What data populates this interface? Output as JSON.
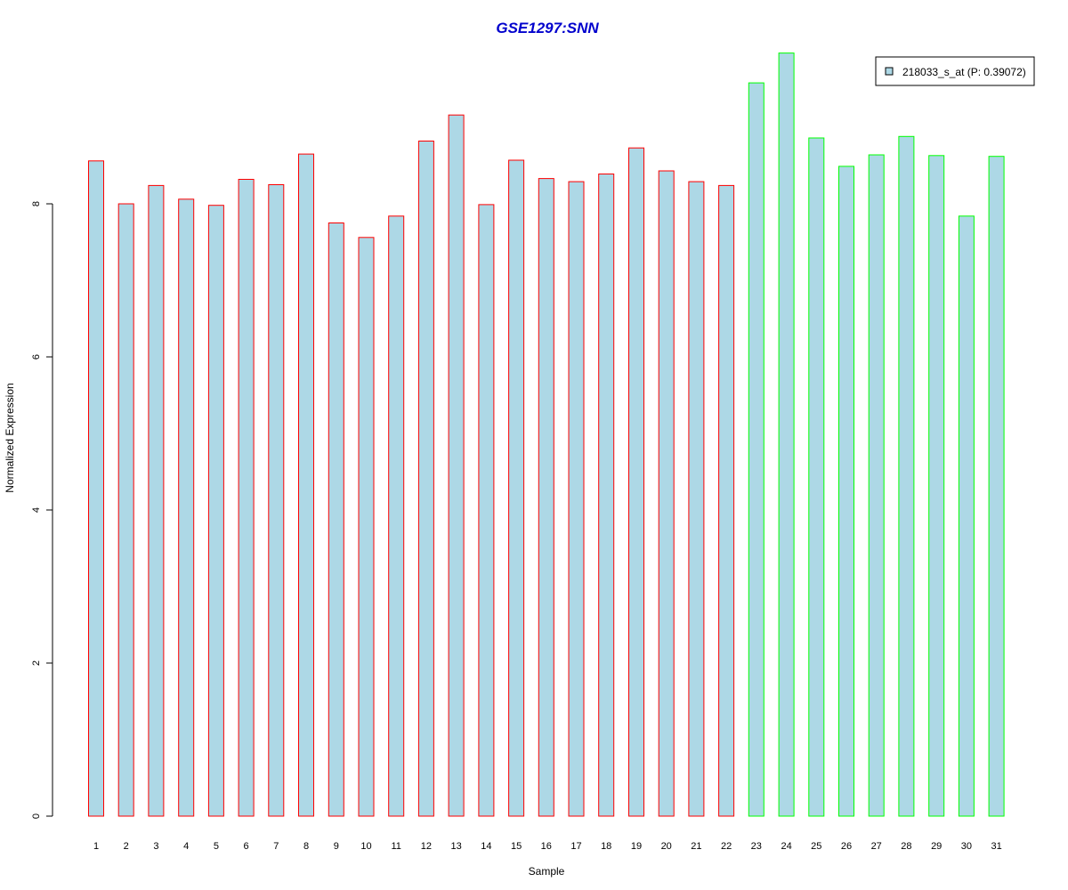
{
  "chart_data": {
    "type": "bar",
    "title": "GSE1297:SNN",
    "xlabel": "Sample",
    "ylabel": "Normalized Expression",
    "ylim": [
      0,
      10
    ],
    "yticks": [
      0,
      2,
      4,
      6,
      8
    ],
    "categories": [
      "1",
      "2",
      "3",
      "4",
      "5",
      "6",
      "7",
      "8",
      "9",
      "10",
      "11",
      "12",
      "13",
      "14",
      "15",
      "16",
      "17",
      "18",
      "19",
      "20",
      "21",
      "22",
      "23",
      "24",
      "25",
      "26",
      "27",
      "28",
      "29",
      "30",
      "31"
    ],
    "series": [
      {
        "name": "218033_s_at (P: 0.39072)",
        "values": [
          8.56,
          8.0,
          8.24,
          8.06,
          7.98,
          8.32,
          8.25,
          8.65,
          7.75,
          7.56,
          7.84,
          8.82,
          9.16,
          7.99,
          8.57,
          8.33,
          8.29,
          8.39,
          8.73,
          8.43,
          8.29,
          8.24,
          9.58,
          9.97,
          8.86,
          8.49,
          8.64,
          8.88,
          8.63,
          7.84,
          8.62
        ]
      }
    ],
    "group_of_bar": [
      0,
      0,
      0,
      0,
      0,
      0,
      0,
      0,
      0,
      0,
      0,
      0,
      0,
      0,
      0,
      0,
      0,
      0,
      0,
      0,
      0,
      0,
      1,
      1,
      1,
      1,
      1,
      1,
      1,
      1,
      1
    ],
    "fill_color": "#add8e6",
    "group_border_colors": [
      "#ff0000",
      "#00ff00"
    ],
    "title_color": "#0000cd",
    "grid": false,
    "legend_position": "top-right"
  }
}
